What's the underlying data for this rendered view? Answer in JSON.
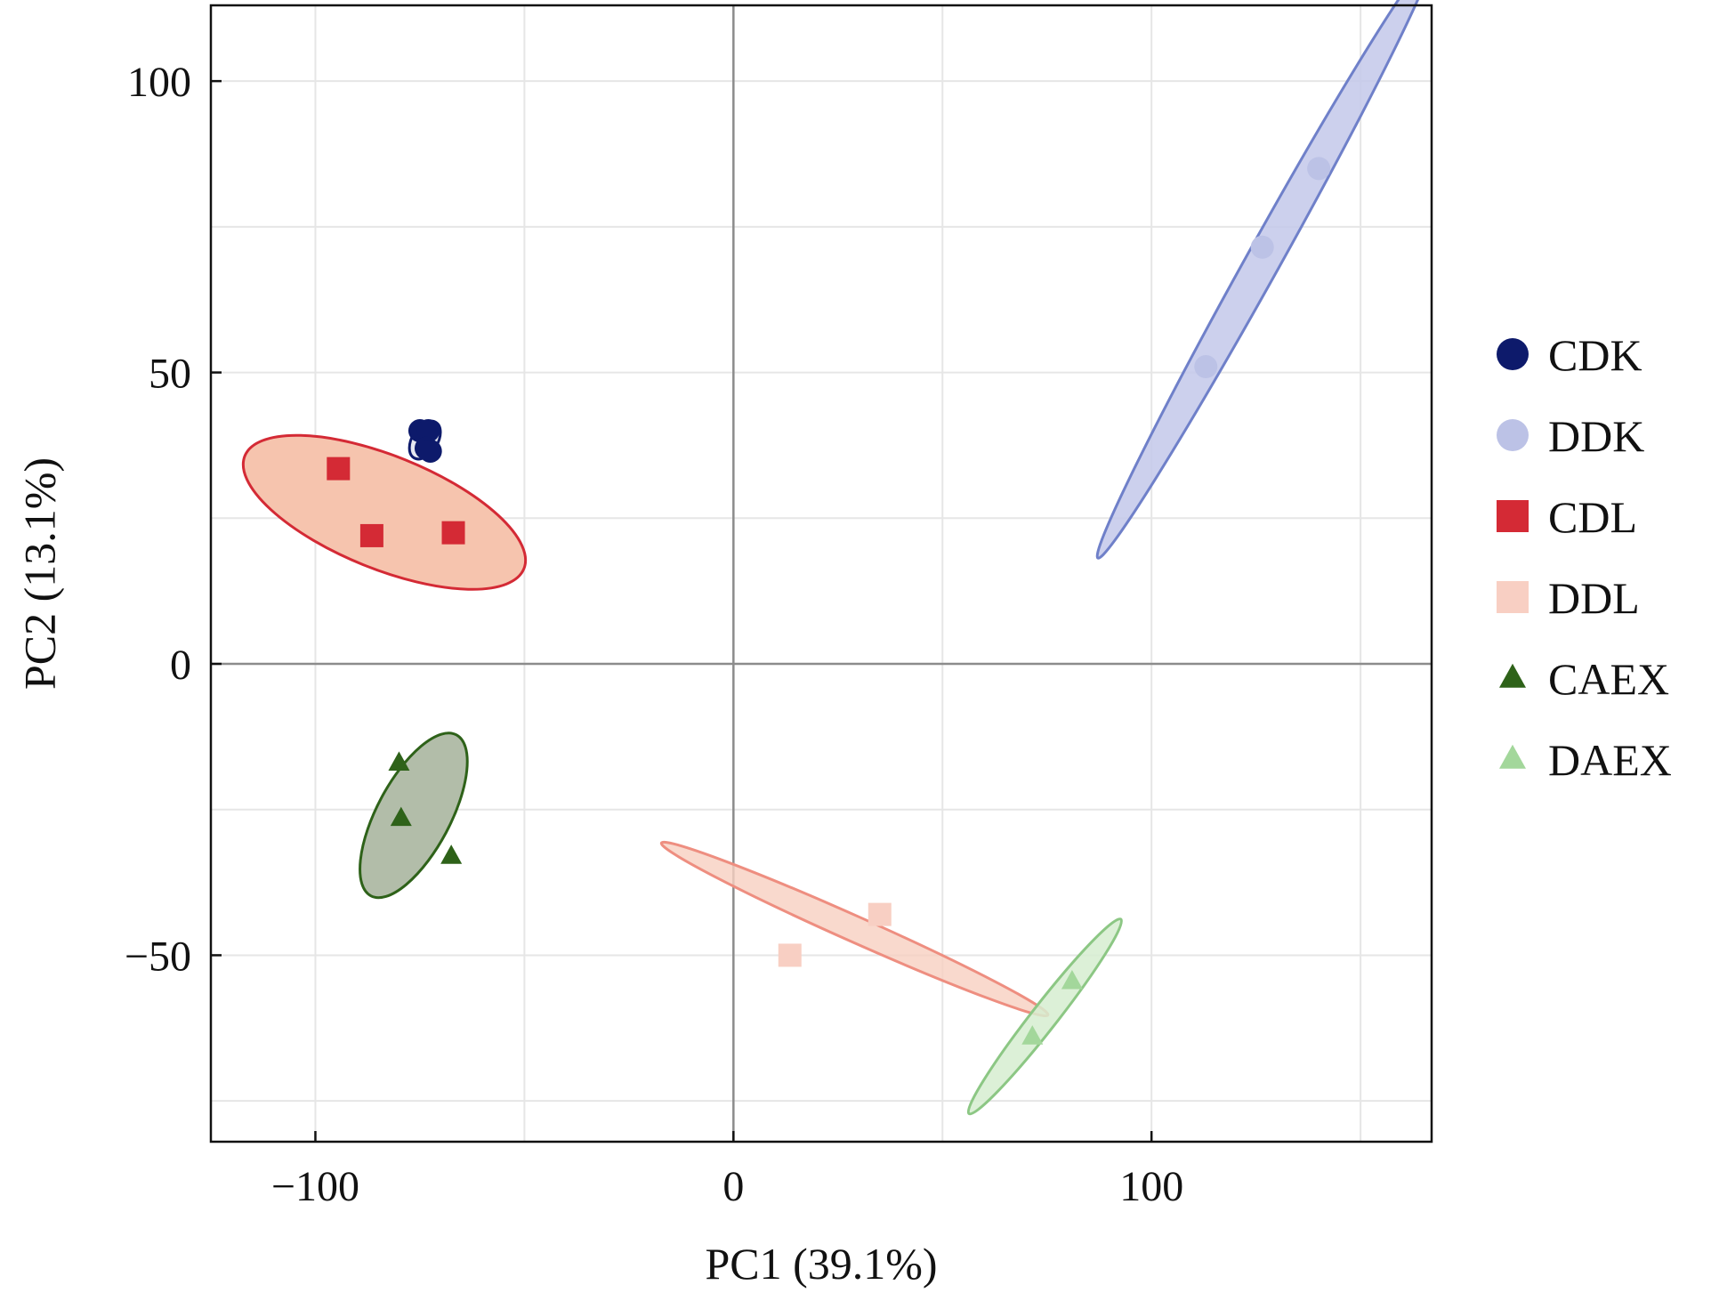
{
  "chart_data": {
    "type": "scatter",
    "xlabel": "PC1 (39.1%)",
    "ylabel": "PC2 (13.1%)",
    "xlim": [
      -125,
      167
    ],
    "ylim": [
      -82,
      113
    ],
    "x_ticks": [
      -100,
      0,
      100
    ],
    "x_tick_labels": [
      "−100",
      "0",
      "100"
    ],
    "y_ticks": [
      100,
      50,
      0,
      -50
    ],
    "y_tick_labels": [
      "100",
      "50",
      "0",
      "−50"
    ],
    "x_minor_grid": [
      -150,
      -100,
      -50,
      0,
      50,
      100,
      150
    ],
    "y_minor_grid": [
      -75,
      -50,
      -25,
      0,
      25,
      50,
      75,
      100
    ],
    "grid": true,
    "zero_lines": true,
    "legend_position": "right",
    "series": [
      {
        "name": "CDK",
        "marker": "circle",
        "color": "#0d1a6b",
        "fill": "#0d1a6b",
        "fill_opacity": 0.1,
        "points": [
          [
            -75,
            40
          ],
          [
            -73,
            40
          ],
          [
            -73.5,
            37
          ],
          [
            -72.5,
            36.5
          ]
        ],
        "ellipse": {
          "cx": -73.8,
          "cy": 38.4,
          "rx": 5.0,
          "ry": 2.2,
          "angle_deg": -58
        }
      },
      {
        "name": "DDK",
        "marker": "circle",
        "color": "#6f80c9",
        "fill": "#c3c8ea",
        "fill_opacity": 0.85,
        "point_color": "#bcc2e6",
        "points": [
          [
            113,
            51
          ],
          [
            126.5,
            71.5
          ],
          [
            140,
            85
          ]
        ],
        "ellipse": {
          "cx": 127,
          "cy": 69.5,
          "rx": 81.9,
          "ry": 2.9,
          "angle_deg": -60.9
        }
      },
      {
        "name": "CDL",
        "marker": "square",
        "color": "#d42a35",
        "fill": "#f6c4ae",
        "fill_opacity": 1,
        "points": [
          [
            -94.5,
            33.5
          ],
          [
            -86.5,
            22
          ],
          [
            -67,
            22.5
          ]
        ],
        "ellipse": {
          "cx": -83.5,
          "cy": 26,
          "rx": 36,
          "ry": 9.7,
          "angle_deg": 22
        }
      },
      {
        "name": "DDL",
        "marker": "square",
        "color": "#ee8e80",
        "fill": "#f7cfc1",
        "fill_opacity": 0.8,
        "point_color": "#f8cfc3",
        "points": [
          [
            13.5,
            -50
          ],
          [
            35,
            -43
          ]
        ],
        "ellipse": {
          "cx": 29,
          "cy": -45.5,
          "rx": 50.6,
          "ry": 2.2,
          "angle_deg": 24
        }
      },
      {
        "name": "CAEX",
        "marker": "triangle",
        "color": "#2e6219",
        "fill": "#b2bda9",
        "fill_opacity": 1,
        "points": [
          [
            -80,
            -17
          ],
          [
            -79.5,
            -26.5
          ],
          [
            -67.5,
            -33
          ]
        ],
        "ellipse": {
          "cx": -76.5,
          "cy": -26,
          "rx": 21.8,
          "ry": 6.3,
          "angle_deg": -62
        }
      },
      {
        "name": "DAEX",
        "marker": "triangle",
        "color": "#8cc784",
        "fill": "#d6edd0",
        "fill_opacity": 0.85,
        "point_color": "#a3d79b",
        "points": [
          [
            71.5,
            -64
          ],
          [
            81,
            -54.5
          ]
        ],
        "ellipse": {
          "cx": 74.5,
          "cy": -60.5,
          "rx": 29.5,
          "ry": 2.2,
          "angle_deg": -52
        }
      }
    ]
  }
}
